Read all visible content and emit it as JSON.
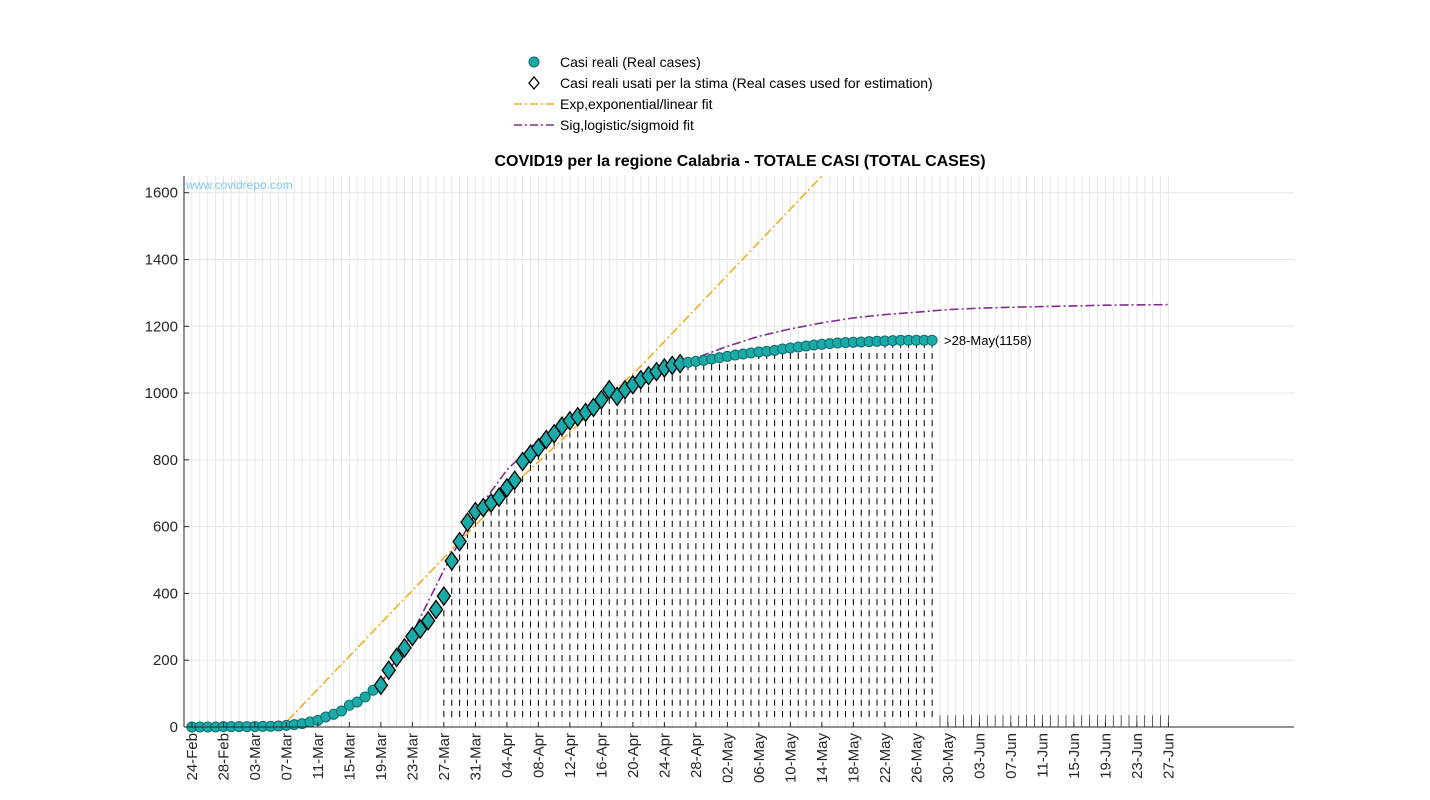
{
  "chart_data": {
    "type": "scatter",
    "title": "COVID19 per la regione Calabria - TOTALE CASI (TOTAL CASES)",
    "watermark": "www.covidrepo.com",
    "xlabel": "",
    "ylabel": "",
    "ylim": [
      0,
      1650
    ],
    "y_ticks": [
      0,
      200,
      400,
      600,
      800,
      1000,
      1200,
      1400,
      1600
    ],
    "x_range_days": [
      "23-Feb",
      "28-Jun"
    ],
    "x_tick_labels": [
      "24-Feb",
      "28-Feb",
      "03-Mar",
      "07-Mar",
      "11-Mar",
      "15-Mar",
      "19-Mar",
      "23-Mar",
      "27-Mar",
      "31-Mar",
      "04-Apr",
      "08-Apr",
      "12-Apr",
      "16-Apr",
      "20-Apr",
      "24-Apr",
      "28-Apr",
      "02-May",
      "06-May",
      "10-May",
      "14-May",
      "18-May",
      "22-May",
      "26-May",
      "30-May",
      "03-Jun",
      "07-Jun",
      "11-Jun",
      "15-Jun",
      "19-Jun",
      "23-Jun",
      "27-Jun"
    ],
    "grid": true,
    "legend_position": "top-center",
    "annotation": {
      "text": ">28-May(1158)",
      "date": "28-May",
      "value": 1158
    },
    "series": [
      {
        "name": "Casi reali (Real cases)",
        "marker": "circle",
        "color": "#1aaaa8",
        "dates_start": "24-Feb",
        "values": [
          0,
          0,
          0,
          0,
          1,
          1,
          1,
          1,
          1,
          2,
          2,
          3,
          5,
          7,
          10,
          15,
          20,
          30,
          38,
          48,
          65,
          75,
          90,
          110,
          125,
          170,
          208,
          237,
          271,
          293,
          318,
          352,
          392,
          497,
          555,
          613,
          645,
          657,
          671,
          688,
          716,
          739,
          795,
          817,
          836,
          861,
          878,
          901,
          917,
          929,
          942,
          957,
          980,
          1010,
          990,
          1010,
          1025,
          1040,
          1052,
          1064,
          1075,
          1083,
          1088,
          1092,
          1095,
          1098,
          1102,
          1106,
          1110,
          1114,
          1117,
          1120,
          1123,
          1125,
          1128,
          1132,
          1135,
          1138,
          1141,
          1144,
          1146,
          1148,
          1150,
          1151,
          1152,
          1153,
          1154,
          1155,
          1156,
          1157,
          1158,
          1158,
          1158,
          1158,
          1158
        ]
      },
      {
        "name": "Casi reali usati per la stima (Real cases used for estimation)",
        "marker": "diamond",
        "color": "#000000",
        "dates_start": "19-Mar",
        "dates_end": "26-Apr"
      },
      {
        "name": "Exp,exponential/linear fit",
        "line": "dashdot",
        "color": "#edb120",
        "points": [
          [
            "03-Mar",
            0
          ],
          [
            "07-Mar",
            15
          ],
          [
            "21-Mar",
            360
          ],
          [
            "06-Apr",
            750
          ],
          [
            "21-Apr",
            1080
          ],
          [
            "14-May",
            1650
          ]
        ]
      },
      {
        "name": "Sig,logistic/sigmoid fit",
        "line": "dashdot",
        "color": "#7e2f8e",
        "points": [
          [
            "03-Mar",
            2
          ],
          [
            "07-Mar",
            8
          ],
          [
            "11-Mar",
            22
          ],
          [
            "15-Mar",
            55
          ],
          [
            "19-Mar",
            130
          ],
          [
            "23-Mar",
            280
          ],
          [
            "27-Mar",
            470
          ],
          [
            "31-Mar",
            640
          ],
          [
            "04-Apr",
            770
          ],
          [
            "08-Apr",
            860
          ],
          [
            "12-Apr",
            925
          ],
          [
            "16-Apr",
            980
          ],
          [
            "20-Apr",
            1030
          ],
          [
            "24-Apr",
            1075
          ],
          [
            "28-Apr",
            1105
          ],
          [
            "02-May",
            1140
          ],
          [
            "06-May",
            1170
          ],
          [
            "10-May",
            1192
          ],
          [
            "14-May",
            1210
          ],
          [
            "18-May",
            1225
          ],
          [
            "22-May",
            1235
          ],
          [
            "26-May",
            1242
          ],
          [
            "30-May",
            1250
          ],
          [
            "03-Jun",
            1254
          ],
          [
            "07-Jun",
            1257
          ],
          [
            "11-Jun",
            1259
          ],
          [
            "15-Jun",
            1261
          ],
          [
            "19-Jun",
            1263
          ],
          [
            "23-Jun",
            1264
          ],
          [
            "27-Jun",
            1265
          ]
        ]
      }
    ]
  }
}
